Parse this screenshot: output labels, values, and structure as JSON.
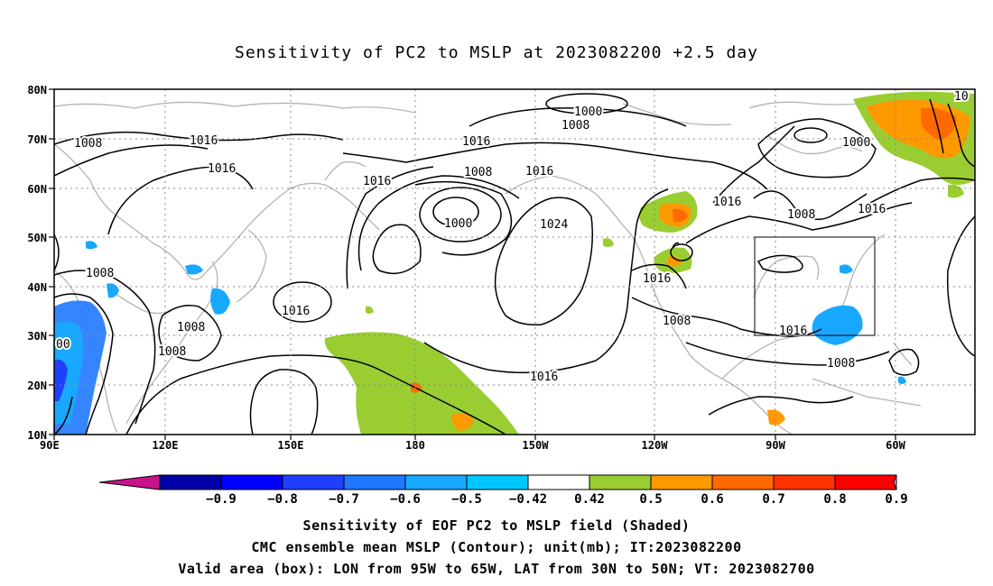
{
  "title": "Sensitivity of PC2 to MSLP at 2023082200 +2.5 day",
  "lat_ticks": [
    "80N",
    "70N",
    "60N",
    "50N",
    "40N",
    "30N",
    "20N",
    "10N"
  ],
  "lon_ticks": [
    "90E",
    "120E",
    "150E",
    "180",
    "150W",
    "120W",
    "90W",
    "60W"
  ],
  "contour_labels": [
    {
      "text": "1000",
      "name": "contour-label-1000-arctic"
    },
    {
      "text": "1008",
      "name": "contour-label-1008-arctic"
    },
    {
      "text": "1008",
      "name": "contour-label-1008-siberia"
    },
    {
      "text": "1016",
      "name": "contour-label-1016-siberia"
    },
    {
      "text": "1016",
      "name": "contour-label-1016-siberia-inner"
    },
    {
      "text": "1016",
      "name": "contour-label-1016-bering"
    },
    {
      "text": "1016",
      "name": "contour-label-1016-northpacific"
    },
    {
      "text": "1016",
      "name": "contour-label-1016-alaska"
    },
    {
      "text": "1008",
      "name": "contour-label-1008-aleutian"
    },
    {
      "text": "1000",
      "name": "contour-label-1000-aleutian"
    },
    {
      "text": "1024",
      "name": "contour-label-1024-high"
    },
    {
      "text": "1016",
      "name": "contour-label-1016-canada"
    },
    {
      "text": "1000",
      "name": "contour-label-1000-hudson"
    },
    {
      "text": "1008",
      "name": "contour-label-1008-labrador"
    },
    {
      "text": "1016",
      "name": "contour-label-1016-atlantic"
    },
    {
      "text": "10",
      "name": "contour-label-10-corner"
    },
    {
      "text": "1008",
      "name": "contour-label-1008-china"
    },
    {
      "text": "1008",
      "name": "contour-label-1008-korea"
    },
    {
      "text": "1016",
      "name": "contour-label-1016-westpacific"
    },
    {
      "text": "1008",
      "name": "contour-label-1008-southchina"
    },
    {
      "text": "00",
      "name": "contour-label-00-india"
    },
    {
      "text": "1016",
      "name": "contour-label-1016-uswest"
    },
    {
      "text": "1008",
      "name": "contour-label-1008-mexico"
    },
    {
      "text": "1016",
      "name": "contour-label-1016-gulf"
    },
    {
      "text": "1008",
      "name": "contour-label-1008-caribbean"
    },
    {
      "text": "1016",
      "name": "contour-label-1016-subtropical"
    }
  ],
  "colorbar": {
    "labels": [
      "−0.9",
      "−0.8",
      "−0.7",
      "−0.6",
      "−0.5",
      "−0.42",
      "0.42",
      "0.5",
      "0.6",
      "0.7",
      "0.8",
      "0.9"
    ],
    "colors": [
      "#0000a8",
      "#0000ff",
      "#1f3fff",
      "#1f78ff",
      "#18a8ff",
      "#00c8ff",
      "#ffffff",
      "#9acd32",
      "#ff9900",
      "#ff6a00",
      "#ff3300",
      "#ff0000"
    ],
    "low_color": "#c8148c",
    "high_color": "#ff9ec8"
  },
  "box": {
    "lon_west": "95W",
    "lon_east": "65W",
    "lat_south": "30N",
    "lat_north": "50N"
  },
  "captions": [
    "Sensitivity of EOF PC2 to MSLP field (Shaded)",
    "CMC ensemble mean MSLP (Contour); unit(mb); IT:2023082200",
    "Valid area (box): LON from 95W to 65W, LAT from 30N to 50N; VT: 2023082700"
  ]
}
